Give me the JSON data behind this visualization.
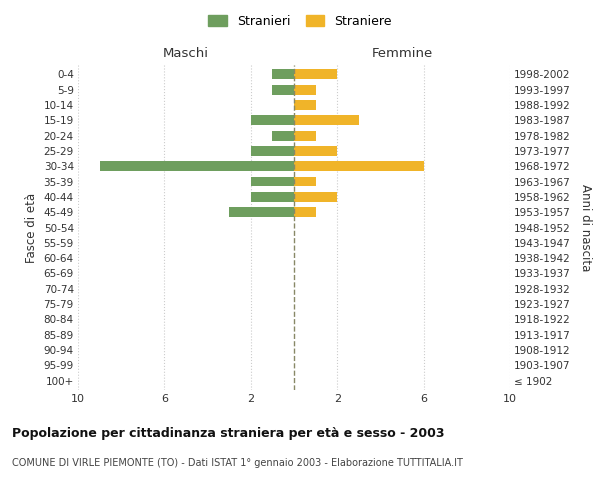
{
  "age_groups": [
    "100+",
    "95-99",
    "90-94",
    "85-89",
    "80-84",
    "75-79",
    "70-74",
    "65-69",
    "60-64",
    "55-59",
    "50-54",
    "45-49",
    "40-44",
    "35-39",
    "30-34",
    "25-29",
    "20-24",
    "15-19",
    "10-14",
    "5-9",
    "0-4"
  ],
  "birth_years": [
    "≤ 1902",
    "1903-1907",
    "1908-1912",
    "1913-1917",
    "1918-1922",
    "1923-1927",
    "1928-1932",
    "1933-1937",
    "1938-1942",
    "1943-1947",
    "1948-1952",
    "1953-1957",
    "1958-1962",
    "1963-1967",
    "1968-1972",
    "1973-1977",
    "1978-1982",
    "1983-1987",
    "1988-1992",
    "1993-1997",
    "1998-2002"
  ],
  "maschi": [
    0,
    0,
    0,
    0,
    0,
    0,
    0,
    0,
    0,
    0,
    0,
    3,
    2,
    2,
    9,
    2,
    1,
    2,
    0,
    1,
    1
  ],
  "femmine": [
    0,
    0,
    0,
    0,
    0,
    0,
    0,
    0,
    0,
    0,
    0,
    1,
    2,
    1,
    6,
    2,
    1,
    3,
    1,
    1,
    2
  ],
  "color_maschi": "#6e9e5e",
  "color_femmine": "#f0b429",
  "dashed_line_color": "#888866",
  "title": "Popolazione per cittadinanza straniera per età e sesso - 2003",
  "subtitle": "COMUNE DI VIRLE PIEMONTE (TO) - Dati ISTAT 1° gennaio 2003 - Elaborazione TUTTITALIA.IT",
  "xlabel_left": "Maschi",
  "xlabel_right": "Femmine",
  "ylabel_left": "Fasce di età",
  "ylabel_right": "Anni di nascita",
  "legend_maschi": "Stranieri",
  "legend_femmine": "Straniere",
  "xlim": 10,
  "background_color": "#ffffff",
  "grid_color": "#cccccc"
}
